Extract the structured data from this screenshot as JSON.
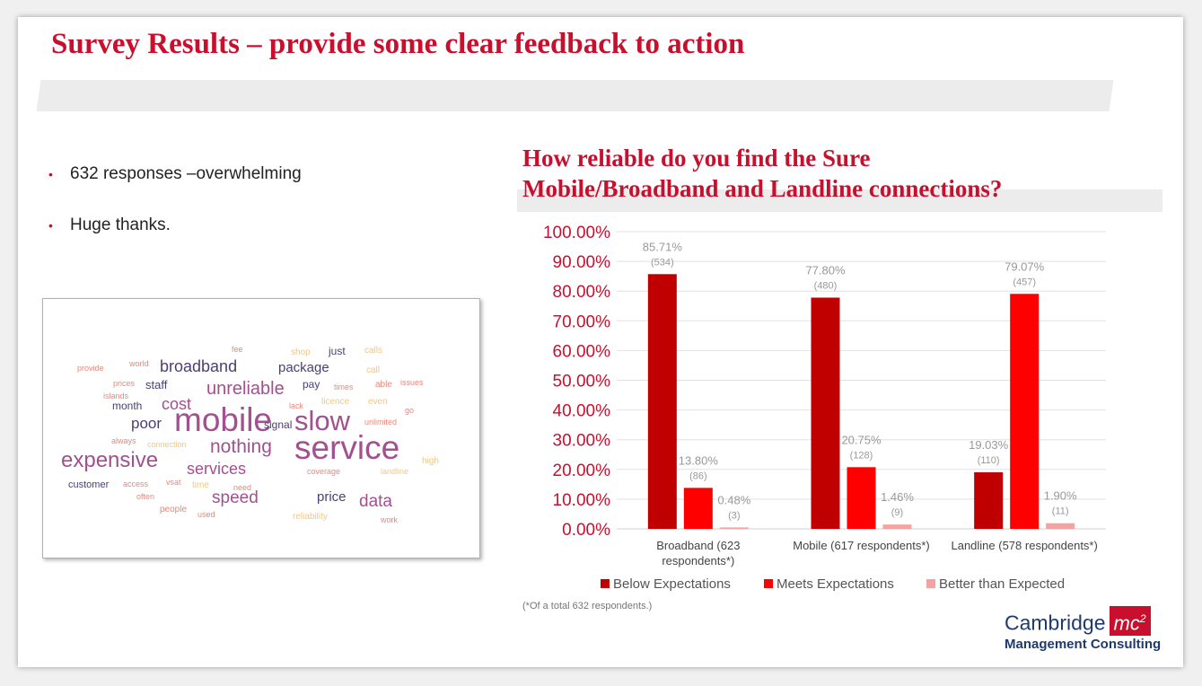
{
  "slide": {
    "title": "Survey Results – provide some clear feedback to action",
    "bullets": [
      "632 responses –overwhelming",
      "Huge thanks."
    ],
    "bullet_color": "#c8102e",
    "footnote": "(*Of a total 632 respondents.)",
    "logo": {
      "line1": "Cambridge",
      "mark": "mc",
      "mark_sup": "2",
      "line2": "Management Consulting"
    }
  },
  "word_cloud": [
    {
      "text": "mobile",
      "color": "#a2508f"
    },
    {
      "text": "service",
      "color": "#a2508f"
    },
    {
      "text": "slow",
      "color": "#a2508f"
    },
    {
      "text": "expensive",
      "color": "#a2508f"
    },
    {
      "text": "nothing",
      "color": "#a2508f"
    },
    {
      "text": "unreliable",
      "color": "#a2508f"
    },
    {
      "text": "broadband",
      "color": "#4b3f72"
    },
    {
      "text": "services",
      "color": "#a2508f"
    },
    {
      "text": "speed",
      "color": "#a2508f"
    },
    {
      "text": "data",
      "color": "#a2508f"
    },
    {
      "text": "cost",
      "color": "#a2508f"
    },
    {
      "text": "poor",
      "color": "#4b3f72"
    },
    {
      "text": "package",
      "color": "#4b3f72"
    },
    {
      "text": "price",
      "color": "#4b3f72"
    },
    {
      "text": "staff",
      "color": "#4b3f72"
    },
    {
      "text": "month",
      "color": "#4b3f72"
    },
    {
      "text": "signal",
      "color": "#4b3f72"
    },
    {
      "text": "customer",
      "color": "#4b3f72"
    },
    {
      "text": "pay",
      "color": "#4b3f72"
    },
    {
      "text": "just",
      "color": "#4b3f72"
    },
    {
      "text": "fee",
      "color": "#e8887a"
    },
    {
      "text": "shop",
      "color": "#f2c77f"
    },
    {
      "text": "calls",
      "color": "#f2c77f"
    },
    {
      "text": "provide",
      "color": "#e8887a"
    },
    {
      "text": "world",
      "color": "#e8887a"
    },
    {
      "text": "call",
      "color": "#f2c77f"
    },
    {
      "text": "prices",
      "color": "#e8887a"
    },
    {
      "text": "times",
      "color": "#e8887a"
    },
    {
      "text": "able",
      "color": "#e8887a"
    },
    {
      "text": "issues",
      "color": "#e8887a"
    },
    {
      "text": "islands",
      "color": "#e8887a"
    },
    {
      "text": "licence",
      "color": "#f2c77f"
    },
    {
      "text": "even",
      "color": "#f2c77f"
    },
    {
      "text": "lack",
      "color": "#e8887a"
    },
    {
      "text": "go",
      "color": "#e8887a"
    },
    {
      "text": "unlimited",
      "color": "#e8887a"
    },
    {
      "text": "always",
      "color": "#e8887a"
    },
    {
      "text": "connection",
      "color": "#f2c77f"
    },
    {
      "text": "high",
      "color": "#f2c77f"
    },
    {
      "text": "coverage",
      "color": "#e8887a"
    },
    {
      "text": "landline",
      "color": "#f2c77f"
    },
    {
      "text": "access",
      "color": "#e8887a"
    },
    {
      "text": "vsat",
      "color": "#e8887a"
    },
    {
      "text": "time",
      "color": "#f2c77f"
    },
    {
      "text": "need",
      "color": "#e8887a"
    },
    {
      "text": "often",
      "color": "#e8887a"
    },
    {
      "text": "people",
      "color": "#e8887a"
    },
    {
      "text": "used",
      "color": "#e8887a"
    },
    {
      "text": "reliability",
      "color": "#f2c77f"
    },
    {
      "text": "work",
      "color": "#e8887a"
    }
  ],
  "chart_data": {
    "type": "bar",
    "title": "How reliable do you find the Sure Mobile/Broadband and Landline connections?",
    "categories": [
      "Broadband (623 respondents*)",
      "Mobile (617 respondents*)",
      "Landline (578 respondents*)"
    ],
    "series": [
      {
        "name": "Below Expectations",
        "color": "#c00000",
        "values": [
          85.71,
          77.8,
          19.03
        ],
        "labels": [
          "85.71%",
          "77.80%",
          "19.03%"
        ],
        "counts": [
          "(534)",
          "(480)",
          "(110)"
        ]
      },
      {
        "name": "Meets Expectations",
        "color": "#ff0000",
        "values": [
          13.8,
          20.75,
          79.07
        ],
        "labels": [
          "13.80%",
          "20.75%",
          "79.07%"
        ],
        "counts": [
          "(86)",
          "(128)",
          "(457)"
        ]
      },
      {
        "name": "Better than Expected",
        "color": "#f4a3a3",
        "values": [
          0.48,
          1.46,
          1.9
        ],
        "labels": [
          "0.48%",
          "1.46%",
          "1.90%"
        ],
        "counts": [
          "(3)",
          "(9)",
          "(11)"
        ]
      }
    ],
    "ylim": [
      0,
      100
    ],
    "yticks": [
      "0.00%",
      "10.00%",
      "20.00%",
      "30.00%",
      "40.00%",
      "50.00%",
      "60.00%",
      "70.00%",
      "80.00%",
      "90.00%",
      "100.00%"
    ],
    "grid": true,
    "legend": "bottom",
    "tick_color": "#c8102e"
  }
}
